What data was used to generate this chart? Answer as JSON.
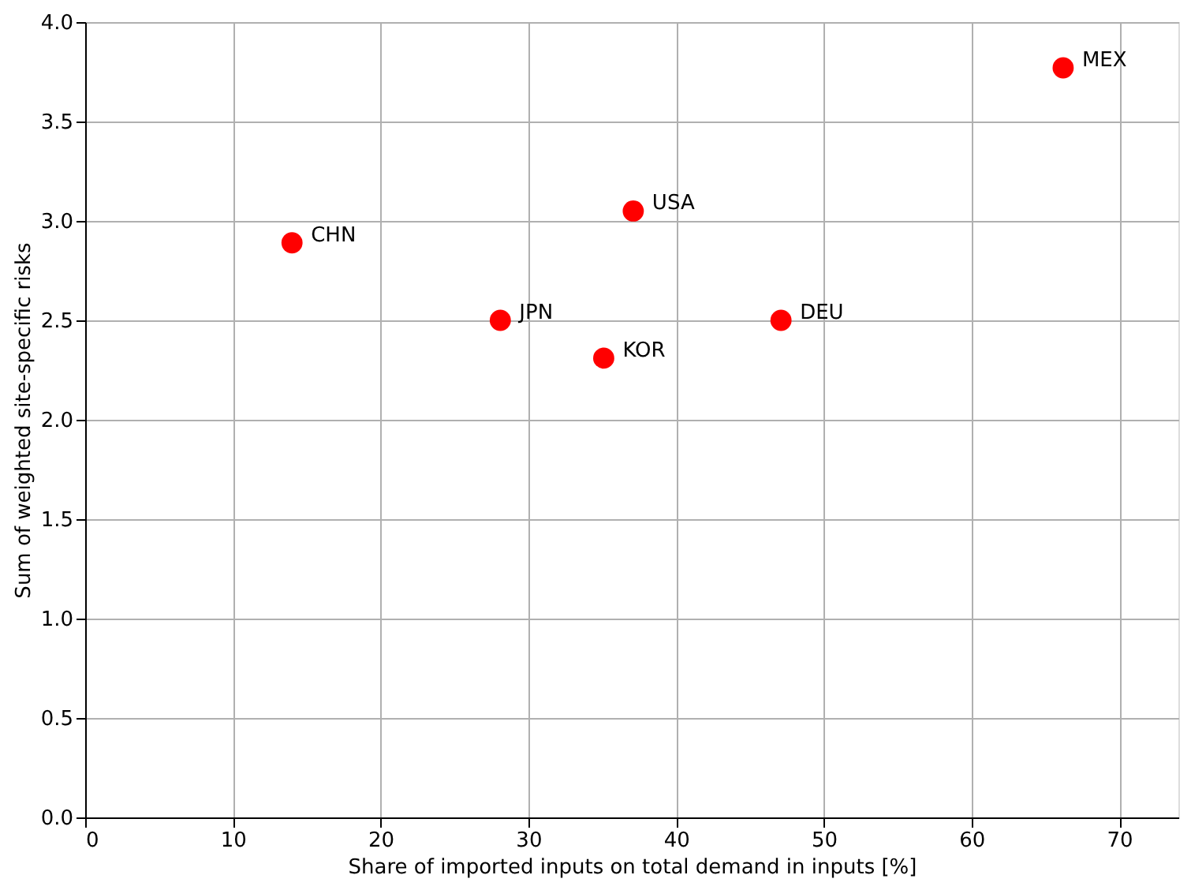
{
  "chart_data": {
    "type": "scatter",
    "xlabel": "Share of imported inputs on total demand in inputs [%]",
    "ylabel": "Sum of weighted site-specific risks",
    "x": [
      14.0,
      28.1,
      35.1,
      37.1,
      47.1,
      66.2
    ],
    "series": [
      {
        "color": "#ff0000",
        "values": [
          2.89,
          2.5,
          2.31,
          3.05,
          2.5,
          3.77
        ]
      }
    ],
    "annotations": [
      {
        "text": "CHN",
        "x": 14.0,
        "y": 2.89
      },
      {
        "text": "JPN",
        "x": 28.1,
        "y": 2.5
      },
      {
        "text": "KOR",
        "x": 35.1,
        "y": 2.31
      },
      {
        "text": "USA",
        "x": 37.1,
        "y": 3.05
      },
      {
        "text": "DEU",
        "x": 47.1,
        "y": 2.5
      },
      {
        "text": "MEX",
        "x": 66.2,
        "y": 3.77
      }
    ],
    "xlim": [
      0,
      74
    ],
    "xticks": [
      0,
      10,
      20,
      30,
      40,
      50,
      60,
      70
    ],
    "ylim": [
      0,
      4.0
    ],
    "yticks": [
      {
        "value": 0,
        "label": "0.0"
      },
      {
        "value": 0.5,
        "label": "0.5"
      },
      {
        "value": 1,
        "label": "1.0"
      },
      {
        "value": 1.5,
        "label": "1.5"
      },
      {
        "value": 2,
        "label": "2.0"
      },
      {
        "value": 2.5,
        "label": "2.5"
      },
      {
        "value": 3,
        "label": "3.0"
      },
      {
        "value": 3.5,
        "label": "3.5"
      },
      {
        "value": 4,
        "label": "4.0"
      }
    ],
    "grid": true,
    "marker": "circle"
  }
}
